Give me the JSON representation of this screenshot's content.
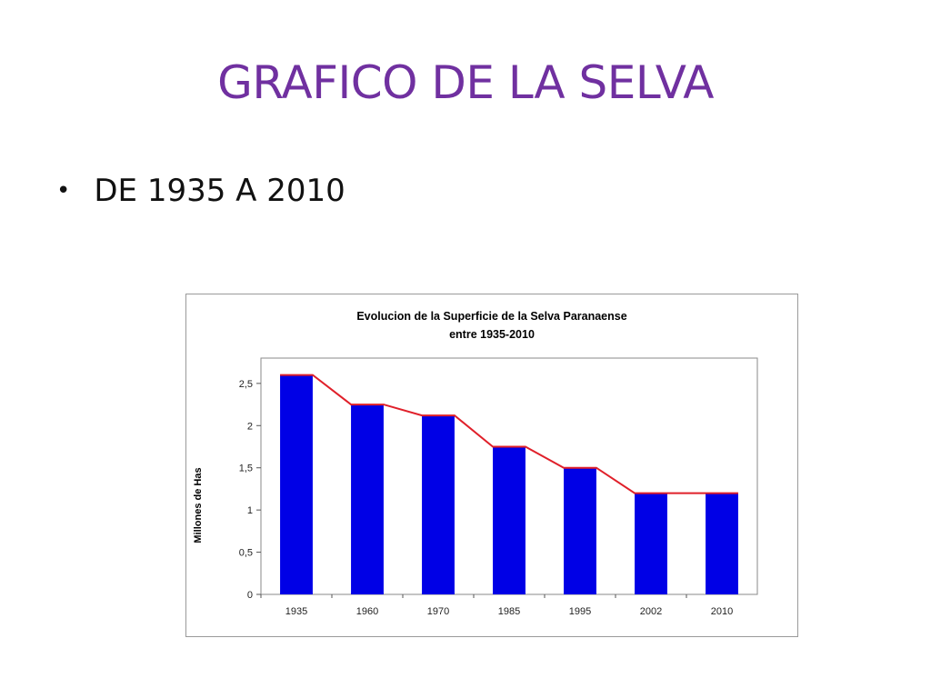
{
  "slide": {
    "title": "GRAFICO DE LA SELVA",
    "bullet": "DE 1935 A 2010"
  },
  "chart_data": {
    "type": "bar",
    "title": "Evolucion de la Superficie de la Selva Paranaense",
    "subtitle": "entre 1935-2010",
    "xlabel": "",
    "ylabel": "Millones de Has",
    "categories": [
      "1935",
      "1960",
      "1970",
      "1985",
      "1995",
      "2002",
      "2010"
    ],
    "values": [
      2.6,
      2.25,
      2.12,
      1.75,
      1.5,
      1.2,
      1.2
    ],
    "trend_line": true,
    "ylim": [
      0,
      2.8
    ],
    "yticks": [
      0,
      0.5,
      1,
      1.5,
      2,
      2.5
    ],
    "ytick_labels": [
      "0",
      "0,5",
      "1",
      "1,5",
      "2",
      "2,5"
    ],
    "grid": false,
    "bar_color": "#0000e6",
    "line_color": "#e0202a",
    "title_color": "#1a1a1a"
  }
}
